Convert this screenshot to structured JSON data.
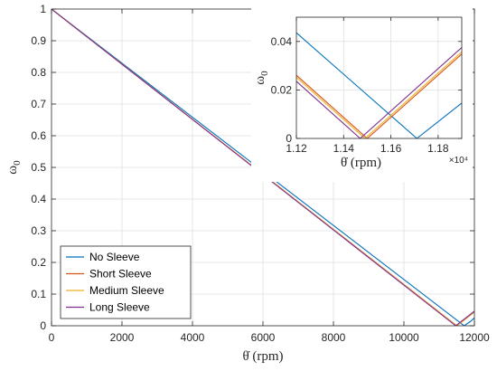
{
  "chart_data": {
    "type": "line",
    "xlabel": "θ̇ (rpm)",
    "ylabel": "ω0",
    "xlim": [
      0,
      12000
    ],
    "ylim": [
      0,
      1
    ],
    "xticks": [
      0,
      2000,
      4000,
      6000,
      8000,
      10000,
      12000
    ],
    "yticks": [
      0,
      0.1,
      0.2,
      0.3,
      0.4,
      0.5,
      0.6,
      0.7,
      0.8,
      0.9,
      1
    ],
    "xtick_labels": [
      "0",
      "2000",
      "4000",
      "6000",
      "8000",
      "10000",
      "12000"
    ],
    "ytick_labels": [
      "0",
      "0.1",
      "0.2",
      "0.3",
      "0.4",
      "0.5",
      "0.6",
      "0.7",
      "0.8",
      "0.9",
      "1"
    ],
    "grid": true,
    "legend_position": "bottom-left",
    "series": [
      {
        "name": "No Sleeve",
        "color": "#0072BD",
        "x": [
          0,
          11710,
          11900,
          12000
        ],
        "y": [
          1,
          0,
          0.0146,
          0.0248
        ]
      },
      {
        "name": "Short Sleeve",
        "color": "#D95319",
        "x": [
          0,
          11500,
          11900,
          12000
        ],
        "y": [
          1,
          0,
          0.0348,
          0.0435
        ]
      },
      {
        "name": "Medium Sleeve",
        "color": "#EDB120",
        "x": [
          0,
          11490,
          11900,
          12000
        ],
        "y": [
          1,
          0,
          0.0357,
          0.0444
        ]
      },
      {
        "name": "Long Sleeve",
        "color": "#7E2F8E",
        "x": [
          0,
          11470,
          11900,
          12000
        ],
        "y": [
          1,
          0,
          0.0375,
          0.0462
        ]
      }
    ],
    "inset": {
      "xlabel": "θ̇ (rpm)",
      "ylabel": "ω0",
      "xlim": [
        11200,
        11900
      ],
      "ylim": [
        0,
        0.05
      ],
      "xticks": [
        11200,
        11400,
        11600,
        11800
      ],
      "xtick_labels": [
        "1.12",
        "1.14",
        "1.16",
        "1.18"
      ],
      "yticks": [
        0,
        0.02,
        0.04
      ],
      "ytick_labels": [
        "0",
        "0.02",
        "0.04"
      ],
      "x_multiplier": "×10⁴",
      "grid": true
    }
  }
}
